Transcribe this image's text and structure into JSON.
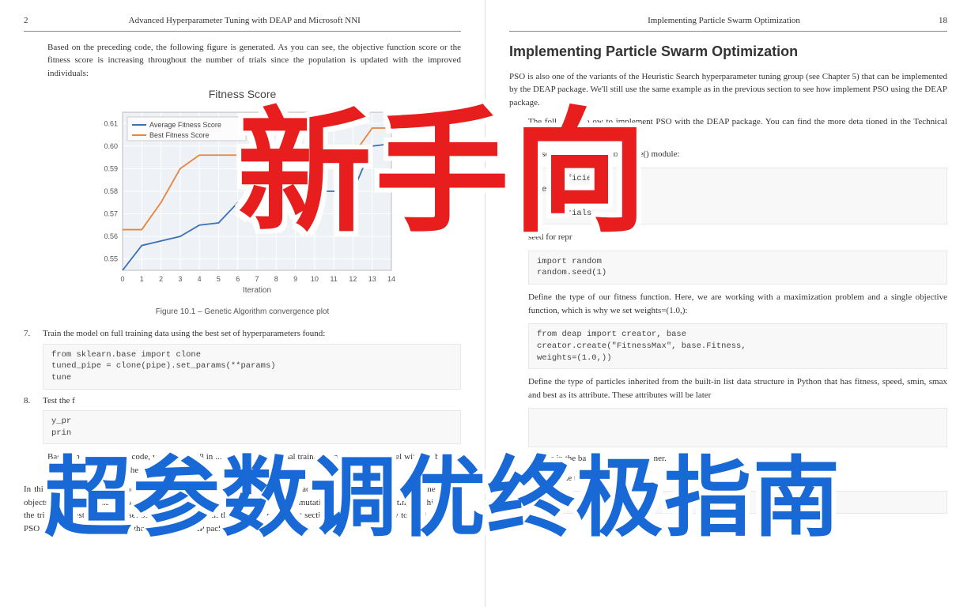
{
  "left_page": {
    "page_number": "2",
    "header": "Advanced Hyperparameter Tuning with DEAP and Microsoft NNI",
    "intro": "Based on the preceding code, the following figure is generated. As you can see, the objective function score or the fitness score is increasing throughout the number of trials since the population is updated with the improved individuals:",
    "chart": {
      "title": "Fitness Score",
      "type": "line",
      "xlabel": "Iteration",
      "xlim": [
        0,
        14
      ],
      "ylim": [
        0.545,
        0.615
      ],
      "yticks": [
        0.55,
        0.56,
        0.57,
        0.58,
        0.59,
        0.6,
        0.61
      ],
      "xticks": [
        0,
        1,
        2,
        3,
        4,
        5,
        6,
        7,
        8,
        9,
        10,
        11,
        12,
        13,
        14
      ],
      "series": [
        {
          "name": "Average Fitness Score",
          "color": "#3b6fb6",
          "values": [
            0.545,
            0.556,
            0.558,
            0.56,
            0.565,
            0.566,
            0.575,
            0.58,
            0.58,
            0.58,
            0.58,
            0.58,
            0.58,
            0.6,
            0.601
          ]
        },
        {
          "name": "Best Fitness Score",
          "color": "#e8843c",
          "values": [
            0.563,
            0.563,
            0.575,
            0.59,
            0.596,
            0.596,
            0.596,
            0.596,
            0.596,
            0.596,
            0.596,
            0.596,
            0.596,
            0.608,
            0.608
          ]
        }
      ],
      "background_color": "#eef1f5",
      "grid_color": "#ffffff",
      "legend_border": "#cccccc"
    },
    "figure_caption": "Figure 10.1 – Genetic Algorithm convergence plot",
    "step7_num": "7.",
    "step7_text": "Train the model on full training data using the best set of hyperparameters found:",
    "code7": "from sklearn.base import clone\ntuned_pipe = clone(pipe).set_params(**params)\ntune",
    "step8_num": "8.",
    "step8_text": "Test the f",
    "code8": "y_pr\nprin",
    "result_text": "Based on the preceding code, we get a 0.608 in ... when using the final trained Random Forest model with the best set of hyperparameters on the test set.",
    "closing": "In this section, we have learned how to implement the GA with the DEAP package, starting from defining the necessary objects and defining the GA procedures with parallel processing and custom mutation strategy, until plotting the history of the trials and testing the best set of hyperparameters in the test set. In the next section, we will learn how to implement the PSO hyperparameter tuning method with the DEAP package."
  },
  "right_page": {
    "page_number": "18",
    "header": "Implementing Particle Swarm Optimization",
    "section_title": "Implementing Particle Swarm Optimization",
    "intro": "PSO is also one of the variants of the Heuristic Search hyperparameter tuning group (see Chapter 5) that can be implemented by the DEAP package. We'll still use the same example as in the previous section to see how               implement PSO using the DEAP package.",
    "para2": "The following co                ow to implement PSO with the DEAP package. You can find the more deta                                        tioned in the Technical requirements section:",
    "classes_text": "classes through the creator.create() module:",
    "code1": "  coefficient\n efficient\n  icient\n  of trials",
    "seed_text": "seed for repr",
    "code2": "import random\nrandom.seed(1)",
    "fitness_text": "Define the type of our fitness function. Here, we are working with a maximization problem and a single objective function, which is why we set weights=(1.0,):",
    "code3": "from deap import creator, base\ncreator.create(\"FitnessMax\", base.Fitness,\nweights=(1.0,))",
    "particles_text": "Define the type of particles inherited from the built-in list data structure in Python that has fitness, speed, smin, smax and best as its attribute. These attributes will be later",
    "code4": " ",
    "step2_num": "2.",
    "step2_text": "De...eir                                                                                              in the base.Toolbox() container.",
    "init_text": "Initialize the toolbox:",
    "code5": "toolbox = base.Toolbox()"
  },
  "overlay": {
    "red_text": "新手向",
    "blue_text": "超参数调优终极指南"
  }
}
